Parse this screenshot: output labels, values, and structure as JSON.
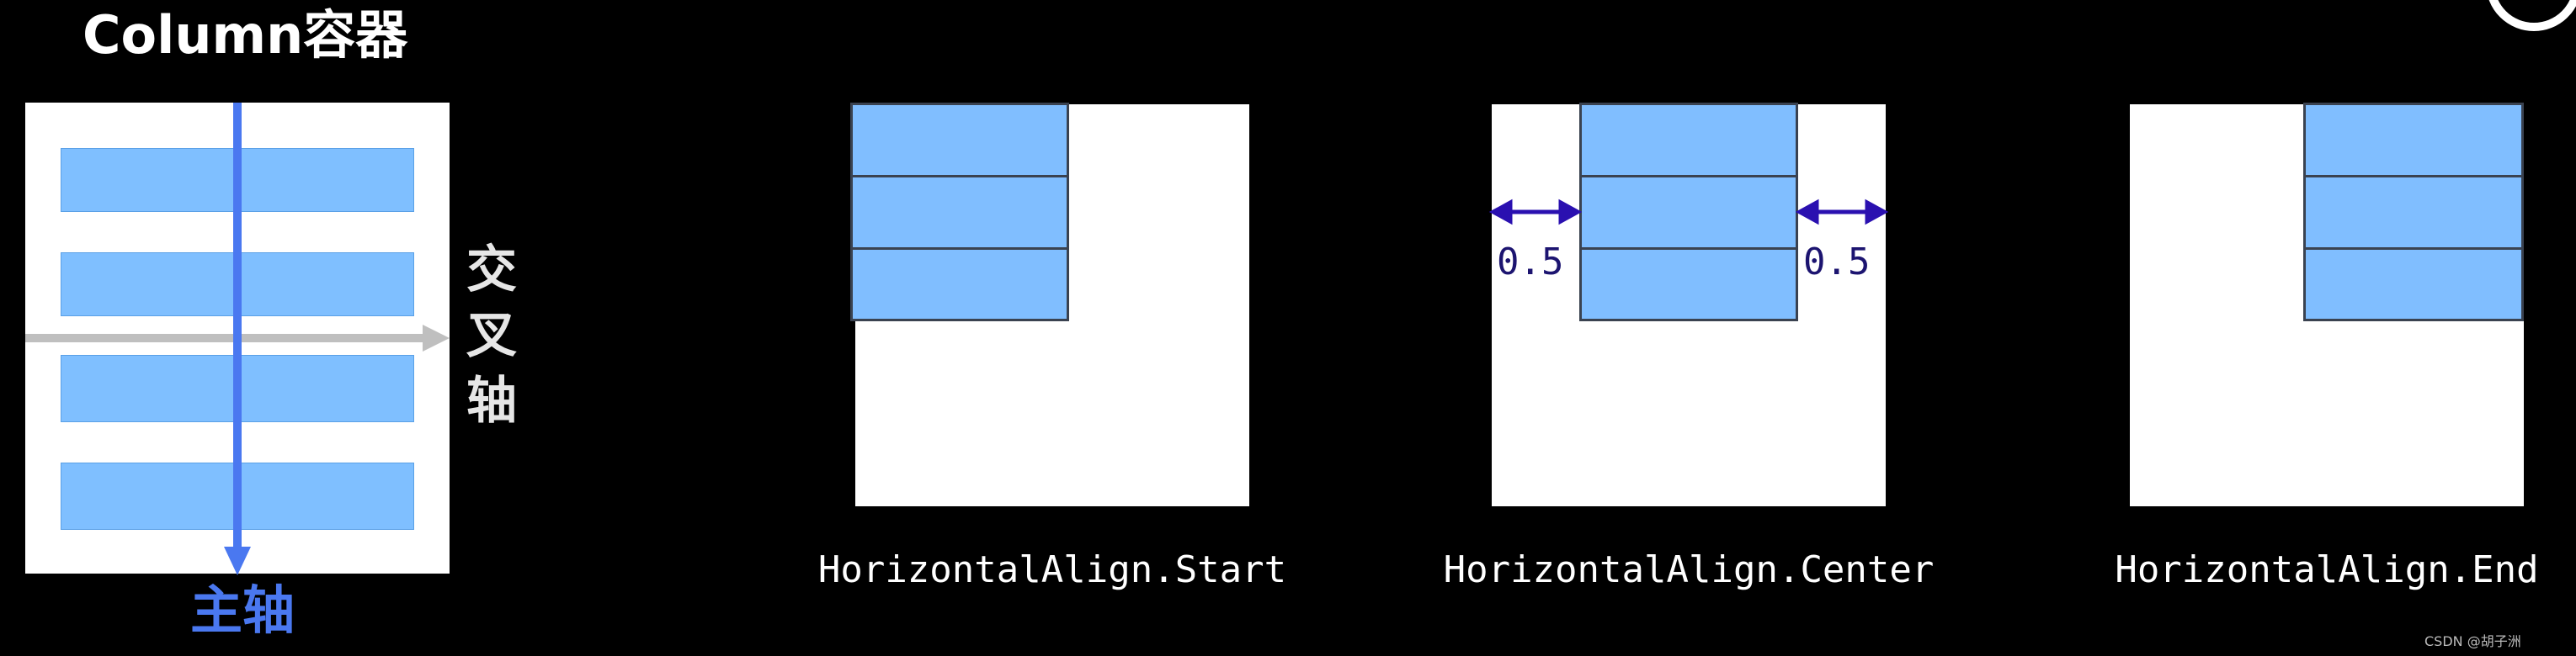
{
  "title": "Column容器",
  "axes": {
    "cross_axis_label": "交叉轴",
    "main_axis_label": "主轴"
  },
  "colors": {
    "background": "#000000",
    "panel": "#ffffff",
    "item_fill": "#80beff",
    "main_axis": "#4a78f0",
    "cross_axis": "#bfbfbf",
    "gap_arrow": "#2a10b0"
  },
  "examples": [
    {
      "caption": "HorizontalAlign.Start",
      "gap_labels": []
    },
    {
      "caption": "HorizontalAlign.Center",
      "gap_labels": [
        "0.5",
        "0.5"
      ]
    },
    {
      "caption": "HorizontalAlign.End",
      "gap_labels": []
    }
  ],
  "watermark": "CSDN @胡子洲",
  "corner_icon": "circle-badge-icon"
}
